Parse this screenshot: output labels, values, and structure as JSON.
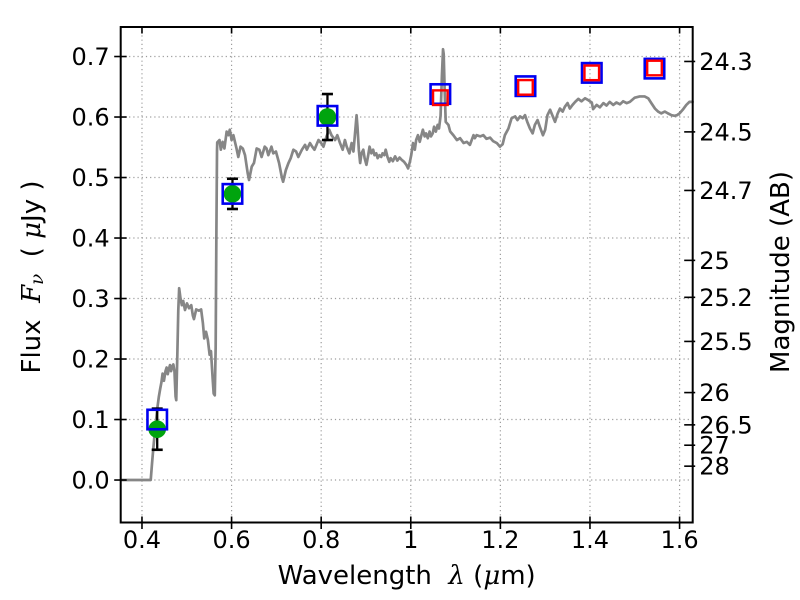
{
  "chart_data": {
    "type": "line+scatter",
    "title": "",
    "xlabel_plain": "Wavelength  λ (μm)",
    "xlabel_parts": [
      {
        "t": "Wavelength  ",
        "s": "sans"
      },
      {
        "t": "λ",
        "s": "math"
      },
      {
        "t": " (",
        "s": "sans"
      },
      {
        "t": "μ",
        "s": "math"
      },
      {
        "t": "m)",
        "s": "sans"
      }
    ],
    "ylabel_left_plain": "Flux  Fν  ( μJy )",
    "ylabel_left_parts": [
      {
        "t": "Flux  ",
        "s": "sans"
      },
      {
        "t": "F",
        "s": "math"
      },
      {
        "t": "ν",
        "s": "mathsub"
      },
      {
        "t": "  ( ",
        "s": "sans"
      },
      {
        "t": "μ",
        "s": "math"
      },
      {
        "t": "Jy )",
        "s": "sans"
      }
    ],
    "ylabel_right": "Magnitude (AB)",
    "xlim": [
      0.3525,
      1.6293
    ],
    "ylim": [
      -0.0702,
      0.7488
    ],
    "grid": true,
    "x_ticks": {
      "values": [
        0.4,
        0.6,
        0.8,
        1.0,
        1.2,
        1.4,
        1.6
      ],
      "labels": [
        "0.4",
        "0.6",
        "0.8",
        "1",
        "1.2",
        "1.4",
        "1.6"
      ]
    },
    "flux_ticks": {
      "values": [
        0.0,
        0.1,
        0.2,
        0.3,
        0.4,
        0.5,
        0.6,
        0.7
      ],
      "labels": [
        "0.0",
        "0.1",
        "0.2",
        "0.3",
        "0.4",
        "0.5",
        "0.6",
        "0.7"
      ]
    },
    "mag_ticks": {
      "values": [
        24.3,
        24.5,
        24.7,
        25.0,
        25.2,
        25.5,
        26.0,
        26.5,
        27.0,
        28.0
      ],
      "labels": [
        "24.3",
        "24.5",
        "24.7",
        "25",
        "25.2",
        "25.5",
        "26",
        "26.5",
        "27",
        "28"
      ]
    },
    "ab_zeropoint_microjansky": 23.9,
    "colors": {
      "spectrum": "#868686",
      "green_marker": "#00a40e",
      "blue_marker": "#0000f0",
      "red_marker": "#ff0000",
      "errorbar": "#000000",
      "grid": "#9c9c9c",
      "axis": "#000000"
    },
    "series": [
      {
        "name": "model-spectrum",
        "type": "line",
        "points": [
          [
            0.3525,
            0.0
          ],
          [
            0.418,
            0.0
          ],
          [
            0.4195,
            0.0
          ],
          [
            0.4225,
            0.028
          ],
          [
            0.4255,
            0.054
          ],
          [
            0.4285,
            0.078
          ],
          [
            0.4315,
            0.099
          ],
          [
            0.4345,
            0.12
          ],
          [
            0.4375,
            0.137
          ],
          [
            0.4405,
            0.15
          ],
          [
            0.4435,
            0.162
          ],
          [
            0.446,
            0.176
          ],
          [
            0.449,
            0.164
          ],
          [
            0.4525,
            0.18
          ],
          [
            0.455,
            0.186
          ],
          [
            0.4575,
            0.175
          ],
          [
            0.46,
            0.183
          ],
          [
            0.4625,
            0.19
          ],
          [
            0.465,
            0.18
          ],
          [
            0.4675,
            0.188
          ],
          [
            0.47,
            0.191
          ],
          [
            0.4725,
            0.18
          ],
          [
            0.475,
            0.138
          ],
          [
            0.4765,
            0.132
          ],
          [
            0.479,
            0.21
          ],
          [
            0.481,
            0.28
          ],
          [
            0.483,
            0.317
          ],
          [
            0.486,
            0.3
          ],
          [
            0.489,
            0.289
          ],
          [
            0.492,
            0.296
          ],
          [
            0.496,
            0.281
          ],
          [
            0.5005,
            0.292
          ],
          [
            0.505,
            0.284
          ],
          [
            0.51,
            0.289
          ],
          [
            0.5135,
            0.272
          ],
          [
            0.516,
            0.266
          ],
          [
            0.521,
            0.282
          ],
          [
            0.527,
            0.28
          ],
          [
            0.532,
            0.282
          ],
          [
            0.536,
            0.259
          ],
          [
            0.539,
            0.234
          ],
          [
            0.543,
            0.245
          ],
          [
            0.547,
            0.232
          ],
          [
            0.551,
            0.207
          ],
          [
            0.554,
            0.213
          ],
          [
            0.558,
            0.165
          ],
          [
            0.56,
            0.143
          ],
          [
            0.5625,
            0.14
          ],
          [
            0.5645,
            0.22
          ],
          [
            0.566,
            0.4
          ],
          [
            0.5675,
            0.545
          ],
          [
            0.568,
            0.558
          ],
          [
            0.573,
            0.562
          ],
          [
            0.576,
            0.546
          ],
          [
            0.58,
            0.559
          ],
          [
            0.584,
            0.548
          ],
          [
            0.589,
            0.576
          ],
          [
            0.593,
            0.57
          ],
          [
            0.596,
            0.579
          ],
          [
            0.6,
            0.562
          ],
          [
            0.604,
            0.57
          ],
          [
            0.611,
            0.548
          ],
          [
            0.615,
            0.534
          ],
          [
            0.62,
            0.551
          ],
          [
            0.625,
            0.548
          ],
          [
            0.63,
            0.537
          ],
          [
            0.636,
            0.507
          ],
          [
            0.639,
            0.496
          ],
          [
            0.645,
            0.518
          ],
          [
            0.65,
            0.524
          ],
          [
            0.656,
            0.548
          ],
          [
            0.662,
            0.546
          ],
          [
            0.667,
            0.534
          ],
          [
            0.674,
            0.551
          ],
          [
            0.678,
            0.548
          ],
          [
            0.682,
            0.537
          ],
          [
            0.689,
            0.551
          ],
          [
            0.693,
            0.54
          ],
          [
            0.699,
            0.543
          ],
          [
            0.706,
            0.524
          ],
          [
            0.712,
            0.501
          ],
          [
            0.715,
            0.493
          ],
          [
            0.721,
            0.512
          ],
          [
            0.727,
            0.524
          ],
          [
            0.732,
            0.532
          ],
          [
            0.738,
            0.546
          ],
          [
            0.744,
            0.543
          ],
          [
            0.749,
            0.534
          ],
          [
            0.757,
            0.546
          ],
          [
            0.764,
            0.554
          ],
          [
            0.768,
            0.546
          ],
          [
            0.775,
            0.557
          ],
          [
            0.78,
            0.551
          ],
          [
            0.785,
            0.546
          ],
          [
            0.794,
            0.562
          ],
          [
            0.8,
            0.557
          ],
          [
            0.805,
            0.551
          ],
          [
            0.812,
            0.568
          ],
          [
            0.818,
            0.579
          ],
          [
            0.823,
            0.57
          ],
          [
            0.831,
            0.562
          ],
          [
            0.836,
            0.57
          ],
          [
            0.842,
            0.557
          ],
          [
            0.848,
            0.546
          ],
          [
            0.853,
            0.562
          ],
          [
            0.857,
            0.551
          ],
          [
            0.863,
            0.54
          ],
          [
            0.868,
            0.557
          ],
          [
            0.872,
            0.543
          ],
          [
            0.875,
            0.568
          ],
          [
            0.879,
            0.603
          ],
          [
            0.881,
            0.584
          ],
          [
            0.884,
            0.546
          ],
          [
            0.887,
            0.524
          ],
          [
            0.89,
            0.54
          ],
          [
            0.894,
            0.546
          ],
          [
            0.897,
            0.532
          ],
          [
            0.901,
            0.521
          ],
          [
            0.905,
            0.537
          ],
          [
            0.908,
            0.551
          ],
          [
            0.912,
            0.54
          ],
          [
            0.916,
            0.546
          ],
          [
            0.919,
            0.537
          ],
          [
            0.923,
            0.54
          ],
          [
            0.926,
            0.532
          ],
          [
            0.93,
            0.537
          ],
          [
            0.934,
            0.534
          ],
          [
            0.937,
            0.54
          ],
          [
            0.941,
            0.537
          ],
          [
            0.944,
            0.546
          ],
          [
            0.948,
            0.534
          ],
          [
            0.952,
            0.526
          ],
          [
            0.955,
            0.532
          ],
          [
            0.96,
            0.527
          ],
          [
            0.965,
            0.535
          ],
          [
            0.97,
            0.528
          ],
          [
            0.975,
            0.533
          ],
          [
            0.98,
            0.529
          ],
          [
            0.985,
            0.526
          ],
          [
            0.99,
            0.521
          ],
          [
            0.994,
            0.515
          ],
          [
            0.998,
            0.526
          ],
          [
            1.001,
            0.537
          ],
          [
            1.005,
            0.557
          ],
          [
            1.009,
            0.546
          ],
          [
            1.012,
            0.562
          ],
          [
            1.016,
            0.57
          ],
          [
            1.02,
            0.559
          ],
          [
            1.023,
            0.568
          ],
          [
            1.027,
            0.579
          ],
          [
            1.031,
            0.568
          ],
          [
            1.034,
            0.573
          ],
          [
            1.038,
            0.565
          ],
          [
            1.042,
            0.576
          ],
          [
            1.045,
            0.568
          ],
          [
            1.049,
            0.573
          ],
          [
            1.052,
            0.584
          ],
          [
            1.056,
            0.576
          ],
          [
            1.06,
            0.587
          ],
          [
            1.063,
            0.581
          ],
          [
            1.0665,
            0.602
          ],
          [
            1.0695,
            0.668
          ],
          [
            1.072,
            0.712
          ],
          [
            1.0735,
            0.704
          ],
          [
            1.0755,
            0.648
          ],
          [
            1.078,
            0.592
          ],
          [
            1.084,
            0.587
          ],
          [
            1.088,
            0.576
          ],
          [
            1.095,
            0.57
          ],
          [
            1.103,
            0.562
          ],
          [
            1.11,
            0.565
          ],
          [
            1.118,
            0.557
          ],
          [
            1.125,
            0.559
          ],
          [
            1.132,
            0.554
          ],
          [
            1.14,
            0.57
          ],
          [
            1.143,
            0.565
          ],
          [
            1.147,
            0.57
          ],
          [
            1.155,
            0.568
          ],
          [
            1.162,
            0.57
          ],
          [
            1.169,
            0.564
          ],
          [
            1.177,
            0.566
          ],
          [
            1.184,
            0.56
          ],
          [
            1.192,
            0.557
          ],
          [
            1.199,
            0.551
          ],
          [
            1.205,
            0.555
          ],
          [
            1.21,
            0.57
          ],
          [
            1.218,
            0.581
          ],
          [
            1.225,
            0.598
          ],
          [
            1.233,
            0.601
          ],
          [
            1.238,
            0.595
          ],
          [
            1.244,
            0.601
          ],
          [
            1.25,
            0.598
          ],
          [
            1.255,
            0.603
          ],
          [
            1.26,
            0.592
          ],
          [
            1.266,
            0.581
          ],
          [
            1.272,
            0.573
          ],
          [
            1.277,
            0.587
          ],
          [
            1.283,
            0.595
          ],
          [
            1.288,
            0.584
          ],
          [
            1.295,
            0.57
          ],
          [
            1.3,
            0.579
          ],
          [
            1.305,
            0.603
          ],
          [
            1.311,
            0.612
          ],
          [
            1.317,
            0.601
          ],
          [
            1.322,
            0.592
          ],
          [
            1.328,
            0.606
          ],
          [
            1.333,
            0.614
          ],
          [
            1.339,
            0.609
          ],
          [
            1.344,
            0.617
          ],
          [
            1.35,
            0.623
          ],
          [
            1.355,
            0.614
          ],
          [
            1.361,
            0.62
          ],
          [
            1.367,
            0.625
          ],
          [
            1.374,
            0.63
          ],
          [
            1.381,
            0.626
          ],
          [
            1.389,
            0.631
          ],
          [
            1.396,
            0.628
          ],
          [
            1.404,
            0.624
          ],
          [
            1.407,
            0.613
          ],
          [
            1.415,
            0.62
          ],
          [
            1.422,
            0.616
          ],
          [
            1.43,
            0.623
          ],
          [
            1.437,
            0.619
          ],
          [
            1.444,
            0.625
          ],
          [
            1.452,
            0.62
          ],
          [
            1.459,
            0.624
          ],
          [
            1.467,
            0.621
          ],
          [
            1.474,
            0.626
          ],
          [
            1.482,
            0.623
          ],
          [
            1.489,
            0.625
          ],
          [
            1.5,
            0.632
          ],
          [
            1.511,
            0.634
          ],
          [
            1.522,
            0.634
          ],
          [
            1.53,
            0.631
          ],
          [
            1.537,
            0.623
          ],
          [
            1.545,
            0.614
          ],
          [
            1.552,
            0.609
          ],
          [
            1.559,
            0.606
          ],
          [
            1.567,
            0.609
          ],
          [
            1.574,
            0.606
          ],
          [
            1.582,
            0.603
          ],
          [
            1.589,
            0.602
          ],
          [
            1.594,
            0.603
          ],
          [
            1.6,
            0.606
          ],
          [
            1.607,
            0.612
          ],
          [
            1.615,
            0.62
          ],
          [
            1.622,
            0.625
          ],
          [
            1.629,
            0.625
          ]
        ]
      },
      {
        "name": "observed-photometry-circles",
        "type": "scatter",
        "marker": "filled-circle",
        "x": [
          0.434,
          0.602,
          0.814
        ],
        "y": [
          0.084,
          0.473,
          0.6
        ],
        "yerr": [
          0.034,
          0.025,
          0.038
        ]
      },
      {
        "name": "photometry-blue-squares",
        "type": "scatter",
        "marker": "open-square",
        "x": [
          0.434,
          0.602,
          0.814,
          1.066,
          1.256,
          1.404,
          1.544
        ],
        "y": [
          0.1,
          0.473,
          0.602,
          0.638,
          0.651,
          0.673,
          0.68
        ]
      },
      {
        "name": "model-photometry-red-squares",
        "type": "scatter",
        "marker": "open-square",
        "x": [
          1.066,
          1.256,
          1.404,
          1.544
        ],
        "y": [
          0.632,
          0.649,
          0.673,
          0.681
        ]
      }
    ]
  }
}
